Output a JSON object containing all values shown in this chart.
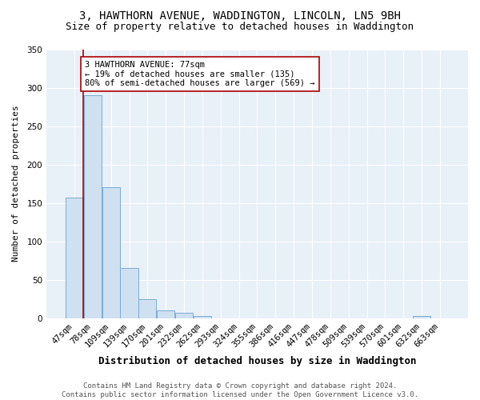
{
  "title": "3, HAWTHORN AVENUE, WADDINGTON, LINCOLN, LN5 9BH",
  "subtitle": "Size of property relative to detached houses in Waddington",
  "xlabel": "Distribution of detached houses by size in Waddington",
  "ylabel": "Number of detached properties",
  "footer_line1": "Contains HM Land Registry data © Crown copyright and database right 2024.",
  "footer_line2": "Contains public sector information licensed under the Open Government Licence v3.0.",
  "bin_labels": [
    "47sqm",
    "78sqm",
    "109sqm",
    "139sqm",
    "170sqm",
    "201sqm",
    "232sqm",
    "262sqm",
    "293sqm",
    "324sqm",
    "355sqm",
    "386sqm",
    "416sqm",
    "447sqm",
    "478sqm",
    "509sqm",
    "539sqm",
    "570sqm",
    "601sqm",
    "632sqm",
    "663sqm"
  ],
  "bar_heights": [
    157,
    290,
    170,
    65,
    25,
    10,
    7,
    3,
    0,
    0,
    0,
    0,
    0,
    0,
    0,
    0,
    0,
    0,
    0,
    3,
    0
  ],
  "bar_color": "#cfe0f0",
  "bar_edge_color": "#7aacd6",
  "annotation_text": "3 HAWTHORN AVENUE: 77sqm\n← 19% of detached houses are smaller (135)\n80% of semi-detached houses are larger (569) →",
  "vline_color": "#aa0000",
  "annotation_box_color": "#ffffff",
  "annotation_box_edge": "#aa0000",
  "ylim": [
    0,
    350
  ],
  "yticks": [
    0,
    50,
    100,
    150,
    200,
    250,
    300,
    350
  ],
  "figure_bg_color": "#ffffff",
  "plot_bg_color": "#e8f0f8",
  "grid_color": "#ffffff",
  "title_fontsize": 10,
  "subtitle_fontsize": 9,
  "xlabel_fontsize": 9,
  "ylabel_fontsize": 8,
  "tick_fontsize": 7.5,
  "annotation_fontsize": 7.5,
  "footer_fontsize": 6.5
}
